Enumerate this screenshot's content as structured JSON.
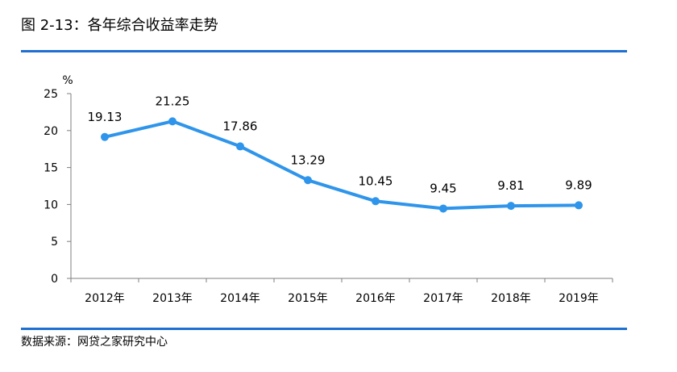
{
  "header": {
    "title": "图 2-13：各年综合收益率走势"
  },
  "footer": {
    "source": "数据来源：网贷之家研究中心"
  },
  "colors": {
    "accent": "#1f6fd1",
    "series": "#2f95ea",
    "axis": "#7f7f7f"
  },
  "chart_data": {
    "type": "line",
    "title": "",
    "ylabel": "%",
    "xlabel": "",
    "categories": [
      "2012年",
      "2013年",
      "2014年",
      "2015年",
      "2016年",
      "2017年",
      "2018年",
      "2019年"
    ],
    "series": [
      {
        "values": [
          19.13,
          21.25,
          17.86,
          13.29,
          10.45,
          9.45,
          9.81,
          9.89
        ],
        "labels": [
          "19.13",
          "21.25",
          "17.86",
          "13.29",
          "10.45",
          "9.45",
          "9.81",
          "9.89"
        ]
      }
    ],
    "ylim": [
      0,
      25
    ],
    "yticks": [
      "0",
      "5",
      "10",
      "15",
      "20",
      "25"
    ],
    "grid": false,
    "legend": "none",
    "data_labels": true
  }
}
